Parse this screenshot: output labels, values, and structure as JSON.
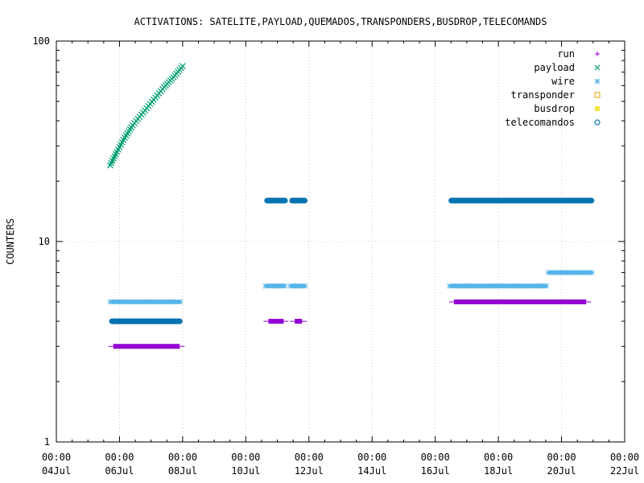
{
  "chart_data": {
    "type": "scatter",
    "title": "ACTIVATIONS: SATELITE,PAYLOAD,QUEMADOS,TRANSPONDERS,BUSDROP,TELECOMANDS",
    "xlabel": "",
    "ylabel": "COUNTERS",
    "y_scale": "log",
    "ylim": [
      1,
      100
    ],
    "y_ticks": [
      "1",
      "10",
      "100"
    ],
    "xlim": [
      "2014-07-04",
      "2014-07-22"
    ],
    "x_ticks": [
      {
        "time": "00:00",
        "date": "04Jul"
      },
      {
        "time": "00:00",
        "date": "06Jul"
      },
      {
        "time": "00:00",
        "date": "08Jul"
      },
      {
        "time": "00:00",
        "date": "10Jul"
      },
      {
        "time": "00:00",
        "date": "12Jul"
      },
      {
        "time": "00:00",
        "date": "14Jul"
      },
      {
        "time": "00:00",
        "date": "16Jul"
      },
      {
        "time": "00:00",
        "date": "18Jul"
      },
      {
        "time": "00:00",
        "date": "20Jul"
      },
      {
        "time": "00:00",
        "date": "22Jul"
      }
    ],
    "grid": true,
    "legend_position": "top-right",
    "series": [
      {
        "name": "run",
        "marker": "plus",
        "color": "#9400d3",
        "segments": [
          {
            "x_start": "2014-07-05 18:00",
            "x_end": "2014-07-07 23:00",
            "y": 3
          },
          {
            "x_start": "2014-07-10 16:00",
            "x_end": "2014-07-11 06:00",
            "y": 4
          },
          {
            "x_start": "2014-07-11 12:00",
            "x_end": "2014-07-11 20:00",
            "y": 4
          },
          {
            "x_start": "2014-07-16 13:00",
            "x_end": "2014-07-20 20:00",
            "y": 5
          }
        ]
      },
      {
        "name": "payload",
        "marker": "cross",
        "color": "#009e73",
        "curve": [
          {
            "x": "2014-07-05 17:00",
            "y": 24
          },
          {
            "x": "2014-07-05 22:00",
            "y": 28
          },
          {
            "x": "2014-07-06 04:00",
            "y": 33
          },
          {
            "x": "2014-07-06 10:00",
            "y": 38
          },
          {
            "x": "2014-07-06 18:00",
            "y": 44
          },
          {
            "x": "2014-07-07 02:00",
            "y": 51
          },
          {
            "x": "2014-07-07 10:00",
            "y": 59
          },
          {
            "x": "2014-07-07 17:00",
            "y": 66
          },
          {
            "x": "2014-07-08 00:00",
            "y": 75
          }
        ]
      },
      {
        "name": "wire",
        "marker": "star",
        "color": "#56b4e9",
        "segments": [
          {
            "x_start": "2014-07-05 17:00",
            "x_end": "2014-07-07 23:00",
            "y": 5
          },
          {
            "x_start": "2014-07-10 15:00",
            "x_end": "2014-07-11 07:00",
            "y": 6
          },
          {
            "x_start": "2014-07-11 10:00",
            "x_end": "2014-07-11 22:00",
            "y": 6
          },
          {
            "x_start": "2014-07-16 11:00",
            "x_end": "2014-07-19 14:00",
            "y": 6
          },
          {
            "x_start": "2014-07-19 14:00",
            "x_end": "2014-07-21 00:00",
            "y": 7
          }
        ]
      },
      {
        "name": "transponder",
        "marker": "open-square",
        "color": "#e69f00",
        "segments": []
      },
      {
        "name": "busdrop",
        "marker": "filled-square",
        "color": "#f0e442",
        "segments": []
      },
      {
        "name": "telecomandos",
        "marker": "open-circle",
        "color": "#0072b2",
        "segments": [
          {
            "x_start": "2014-07-05 17:00",
            "x_end": "2014-07-07 23:00",
            "y": 4
          },
          {
            "x_start": "2014-07-10 15:00",
            "x_end": "2014-07-11 07:00",
            "y": 16
          },
          {
            "x_start": "2014-07-11 10:00",
            "x_end": "2014-07-11 22:00",
            "y": 16
          },
          {
            "x_start": "2014-07-16 11:00",
            "x_end": "2014-07-21 00:00",
            "y": 16
          }
        ]
      }
    ]
  }
}
